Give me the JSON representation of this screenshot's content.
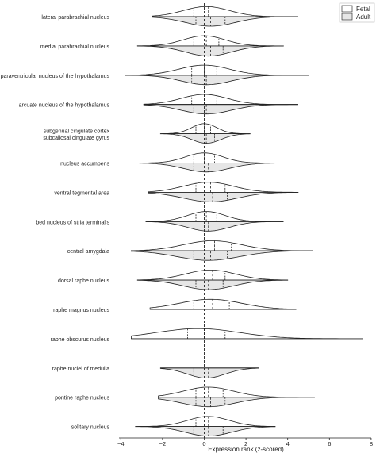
{
  "chart_data": {
    "type": "violin",
    "title": "",
    "xlabel": "Expression rank (z-scored)",
    "ylabel": "",
    "xlim": [
      -4.5,
      8
    ],
    "x_ticks": [
      -4,
      -2,
      0,
      2,
      4,
      6,
      8
    ],
    "reference_line_x": 0,
    "legend_position": "top-right",
    "legend": [
      {
        "name": "Fetal",
        "color": "#ffffff"
      },
      {
        "name": "Adult",
        "color": "#e6e6e6"
      }
    ],
    "categories": [
      {
        "label": [
          "lateral parabrachial nucleus"
        ],
        "min": -2.5,
        "max": 4.5,
        "fetal": {
          "center": 0.1,
          "spread": 1.1,
          "height": 0.85,
          "quartiles": [
            -0.5,
            0.2,
            0.8
          ]
        },
        "adult": {
          "center": 0.3,
          "spread": 1.2,
          "height": 0.8,
          "quartiles": [
            -0.4,
            0.3,
            1.0
          ]
        }
      },
      {
        "label": [
          "medial parabrachial nucleus"
        ],
        "min": -3.2,
        "max": 3.8,
        "fetal": {
          "center": 0.0,
          "spread": 1.0,
          "height": 0.85,
          "quartiles": [
            -0.5,
            0.1,
            0.7
          ]
        },
        "adult": {
          "center": 0.2,
          "spread": 1.1,
          "height": 0.85,
          "quartiles": [
            -0.3,
            0.3,
            0.9
          ]
        }
      },
      {
        "label": [
          "paraventricular nucleus of the hypothalamus"
        ],
        "min": -3.8,
        "max": 5.0,
        "fetal": {
          "center": 0.0,
          "spread": 1.2,
          "height": 0.85,
          "quartiles": [
            -0.6,
            0.0,
            0.6
          ]
        },
        "adult": {
          "center": 0.1,
          "spread": 1.2,
          "height": 0.8,
          "quartiles": [
            -0.6,
            0.1,
            0.8
          ]
        }
      },
      {
        "label": [
          "arcuate nucleus of the hypothalamus"
        ],
        "min": -2.9,
        "max": 4.5,
        "fetal": {
          "center": 0.0,
          "spread": 1.1,
          "height": 0.85,
          "quartiles": [
            -0.6,
            0.0,
            0.6
          ]
        },
        "adult": {
          "center": 0.1,
          "spread": 1.2,
          "height": 0.8,
          "quartiles": [
            -0.5,
            0.1,
            0.8
          ]
        }
      },
      {
        "label": [
          "subgenual cingulate cortex",
          "subcallosal cingulate gyrus"
        ],
        "min": -2.1,
        "max": 2.2,
        "fetal": {
          "center": 0.0,
          "spread": 0.6,
          "height": 0.85,
          "quartiles": [
            -0.4,
            0.0,
            0.3
          ]
        },
        "adult": {
          "center": 0.1,
          "spread": 0.7,
          "height": 0.8,
          "quartiles": [
            -0.3,
            0.1,
            0.5
          ]
        }
      },
      {
        "label": [
          "nucleus accumbens"
        ],
        "min": -3.1,
        "max": 3.9,
        "fetal": {
          "center": 0.0,
          "spread": 0.9,
          "height": 0.85,
          "quartiles": [
            -0.5,
            0.0,
            0.5
          ]
        },
        "adult": {
          "center": 0.1,
          "spread": 1.1,
          "height": 0.75,
          "quartiles": [
            -0.5,
            0.2,
            0.8
          ]
        }
      },
      {
        "label": [
          "ventral tegmental area"
        ],
        "min": -2.7,
        "max": 4.5,
        "fetal": {
          "center": 0.2,
          "spread": 1.2,
          "height": 0.85,
          "quartiles": [
            -0.4,
            0.3,
            1.0
          ]
        },
        "adult": {
          "center": 0.3,
          "spread": 1.3,
          "height": 0.8,
          "quartiles": [
            -0.3,
            0.4,
            1.1
          ]
        }
      },
      {
        "label": [
          "bed nucleus of stria terminalis"
        ],
        "min": -2.8,
        "max": 3.8,
        "fetal": {
          "center": 0.1,
          "spread": 0.9,
          "height": 0.85,
          "quartiles": [
            -0.4,
            0.1,
            0.6
          ]
        },
        "adult": {
          "center": 0.2,
          "spread": 1.0,
          "height": 0.8,
          "quartiles": [
            -0.3,
            0.2,
            0.8
          ]
        }
      },
      {
        "label": [
          "central amygdala"
        ],
        "min": -3.5,
        "max": 5.2,
        "fetal": {
          "center": 0.4,
          "spread": 1.4,
          "height": 0.85,
          "quartiles": [
            -0.3,
            0.5,
            1.3
          ]
        },
        "adult": {
          "center": 0.2,
          "spread": 1.5,
          "height": 0.8,
          "quartiles": [
            -0.5,
            0.3,
            1.1
          ]
        }
      },
      {
        "label": [
          "dorsal raphe nucleus"
        ],
        "min": -3.2,
        "max": 4.0,
        "fetal": {
          "center": 0.3,
          "spread": 1.2,
          "height": 0.85,
          "quartiles": [
            -0.3,
            0.4,
            1.0
          ]
        },
        "adult": {
          "center": 0.2,
          "spread": 1.2,
          "height": 0.8,
          "quartiles": [
            -0.4,
            0.2,
            0.9
          ]
        }
      },
      {
        "label": [
          "raphe magnus nucleus"
        ],
        "min": -2.6,
        "max": 4.4,
        "fetal": {
          "center": 0.3,
          "spread": 1.5,
          "height": 0.85,
          "quartiles": [
            -0.5,
            0.4,
            1.2
          ]
        },
        "adult": null
      },
      {
        "label": [
          "raphe obscurus nucleus"
        ],
        "min": -3.5,
        "max": 7.6,
        "fetal": {
          "center": -0.3,
          "spread": 2.0,
          "height": 0.85,
          "quartiles": [
            -0.8,
            0.0,
            1.0
          ]
        },
        "adult": null
      },
      {
        "label": [
          "raphe nuclei of medulla"
        ],
        "min": -2.1,
        "max": 2.6,
        "fetal": null,
        "adult": {
          "center": 0.1,
          "spread": 0.9,
          "height": 0.85,
          "quartiles": [
            -0.5,
            0.2,
            0.8
          ]
        }
      },
      {
        "label": [
          "pontine raphe nucleus"
        ],
        "min": -2.2,
        "max": 5.3,
        "fetal": {
          "center": 0.2,
          "spread": 1.2,
          "height": 0.85,
          "quartiles": [
            -0.4,
            0.2,
            0.9
          ]
        },
        "adult": {
          "center": 0.2,
          "spread": 1.3,
          "height": 0.8,
          "quartiles": [
            -0.4,
            0.3,
            1.0
          ]
        }
      },
      {
        "label": [
          "solitary nucleus"
        ],
        "min": -3.3,
        "max": 3.4,
        "fetal": {
          "center": 0.2,
          "spread": 1.0,
          "height": 0.85,
          "quartiles": [
            -0.4,
            0.2,
            0.8
          ]
        },
        "adult": {
          "center": 0.2,
          "spread": 1.1,
          "height": 0.8,
          "quartiles": [
            -0.5,
            0.2,
            0.9
          ]
        }
      }
    ]
  }
}
